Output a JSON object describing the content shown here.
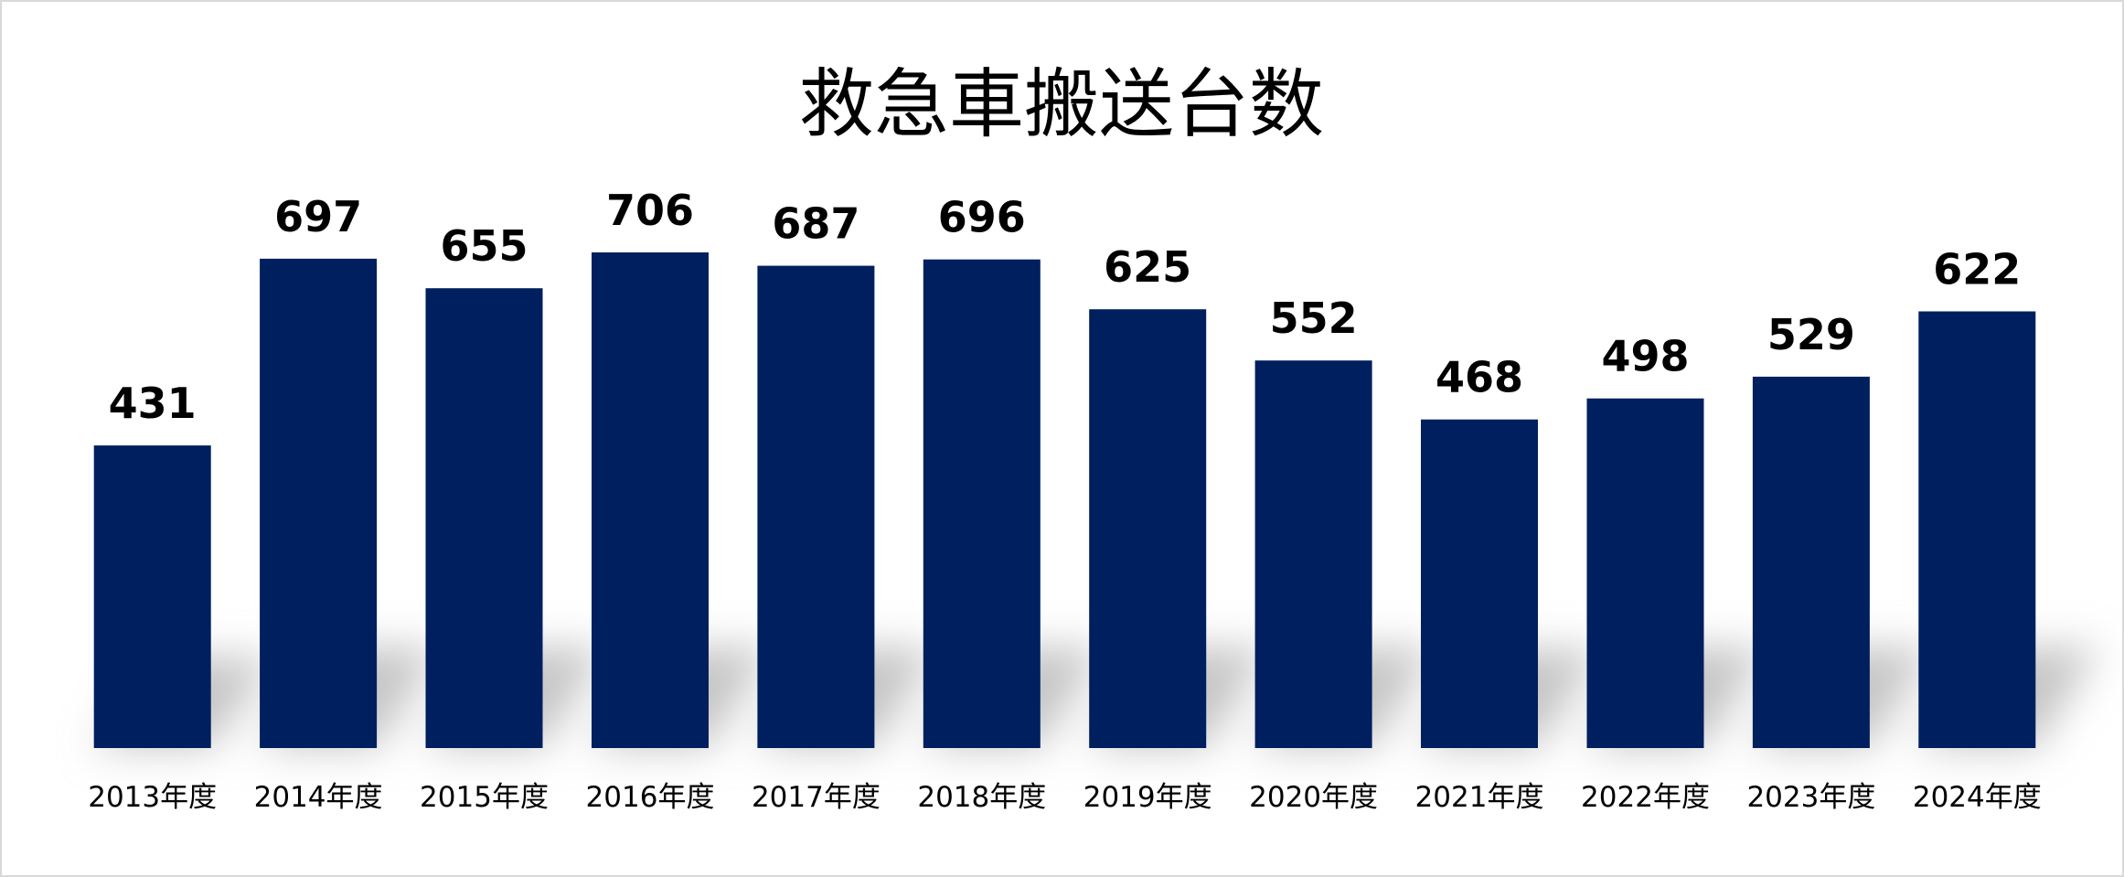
{
  "chart_data": {
    "type": "bar",
    "title": "救急車搬送台数",
    "xlabel": "",
    "ylabel": "",
    "categories": [
      "2013年度",
      "2014年度",
      "2015年度",
      "2016年度",
      "2017年度",
      "2018年度",
      "2019年度",
      "2020年度",
      "2021年度",
      "2022年度",
      "2023年度",
      "2024年度"
    ],
    "values": [
      431,
      697,
      655,
      706,
      687,
      696,
      625,
      552,
      468,
      498,
      529,
      622
    ],
    "ylim": [
      0,
      800
    ],
    "grid": false,
    "legend": "none",
    "data_labels": true,
    "colors": {
      "bar": "#001f5e",
      "shadow": "#bfbfbf",
      "border": "#d9d9d9",
      "text": "#000000"
    }
  }
}
